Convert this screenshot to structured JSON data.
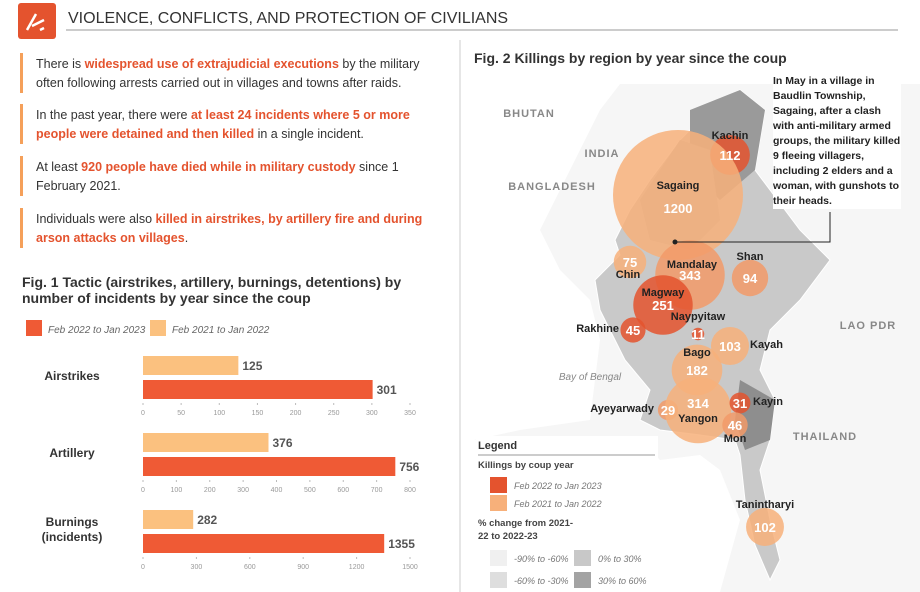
{
  "header": {
    "title": "VIOLENCE, CONFLICTS, AND PROTECTION OF CIVILIANS"
  },
  "bullets": [
    [
      {
        "text": "There is ",
        "em": false
      },
      {
        "text": "widespread use of extrajudicial executions",
        "em": true
      },
      {
        "text": " by the military often following arrests carried out in villages and towns after raids.",
        "em": false
      }
    ],
    [
      {
        "text": "In the past year, there were ",
        "em": false
      },
      {
        "text": "at least 24 incidents where 5 or more people were detained and then killed",
        "em": true
      },
      {
        "text": " in a single incident.",
        "em": false
      }
    ],
    [
      {
        "text": "At least ",
        "em": false
      },
      {
        "text": "920 people have died while in military custody",
        "em": true
      },
      {
        "text": " since 1 February 2021.",
        "em": false
      }
    ],
    [
      {
        "text": "Individuals were also ",
        "em": false
      },
      {
        "text": "killed in airstrikes, by artillery fire and during arson attacks on villages",
        "em": true
      },
      {
        "text": ".",
        "em": false
      }
    ]
  ],
  "chart_data": [
    {
      "type": "bar",
      "orientation": "horizontal",
      "title": "Fig. 1 Tactic (airstrikes, artillery, burnings, detentions) by number of incidents by year since the coup",
      "categories": [
        "Airstrikes",
        "Artillery",
        "Burnings (incidents)"
      ],
      "series": [
        {
          "name": "Feb 2022 to Jan 2023",
          "color": "#ef5a35",
          "values": [
            301,
            756,
            1355
          ]
        },
        {
          "name": "Feb 2021 to Jan 2022",
          "color": "#fbc17f",
          "values": [
            125,
            376,
            282
          ]
        }
      ],
      "xlim": [
        [
          0,
          350
        ],
        [
          0,
          800
        ],
        [
          0,
          1500
        ]
      ],
      "xticks": [
        [
          0,
          50,
          100,
          150,
          200,
          250,
          300,
          350
        ],
        [
          0,
          100,
          200,
          300,
          400,
          500,
          600,
          700,
          800
        ],
        [
          0,
          300,
          600,
          900,
          1200,
          1500
        ]
      ]
    },
    {
      "type": "bubble-map",
      "title": "Fig. 2  Killings by region by year since the coup",
      "regions": [
        {
          "name": "Kachin",
          "value": 112,
          "color": "#e4532e"
        },
        {
          "name": "Sagaing",
          "value": 1200,
          "color": "#f7b07a"
        },
        {
          "name": "Chin",
          "value": 75,
          "color": "#f7b07a"
        },
        {
          "name": "Mandalay",
          "value": 343,
          "color": "#f29a68"
        },
        {
          "name": "Shan",
          "value": 94,
          "color": "#f29a68"
        },
        {
          "name": "Magway",
          "value": 251,
          "color": "#e4532e"
        },
        {
          "name": "Naypyitaw",
          "value": 11,
          "color": "#e4532e"
        },
        {
          "name": "Rakhine",
          "value": 45,
          "color": "#e4532e"
        },
        {
          "name": "Kayah",
          "value": 103,
          "color": "#f7b07a"
        },
        {
          "name": "Bago",
          "value": 182,
          "color": "#f7b07a"
        },
        {
          "name": "Ayeyarwady",
          "value": 29,
          "color": "#f29a68"
        },
        {
          "name": "Yangon",
          "value": 314,
          "color": "#f7b07a"
        },
        {
          "name": "Kayin",
          "value": 31,
          "color": "#e4532e"
        },
        {
          "name": "Mon",
          "value": 46,
          "color": "#f29a68"
        },
        {
          "name": "Tanintharyi",
          "value": 102,
          "color": "#f7b07a"
        }
      ],
      "places": [
        "BHUTAN",
        "INDIA",
        "BANGLADESH",
        "LAO PDR",
        "THAILAND",
        "Bay of Bengal"
      ],
      "annotation": "In May in a village in Baudlin Township, Sagaing, after a clash with anti-military armed groups, the military killed 9 fleeing villagers, including 2 elders and a woman, with gunshots to their heads.",
      "legend": {
        "title": "Legend",
        "subtitle": "Killings by coup year",
        "years": [
          {
            "label": "Feb 2022 to Jan 2023",
            "color": "#e4532e"
          },
          {
            "label": "Feb 2021 to Jan 2022",
            "color": "#f7b07a"
          }
        ],
        "change_title": "% change from 2021-22 to 2022-23",
        "changes": [
          {
            "label": "-90% to -60%",
            "color": "#f0f0f0"
          },
          {
            "label": "0% to 30%",
            "color": "#c8c8c8"
          },
          {
            "label": "-60% to -30%",
            "color": "#dedede"
          },
          {
            "label": "30% to 60%",
            "color": "#a3a3a3"
          }
        ]
      }
    }
  ]
}
